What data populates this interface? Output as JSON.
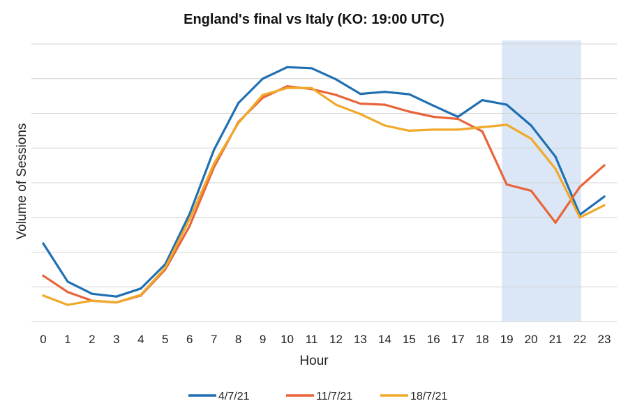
{
  "chart_data": {
    "type": "line",
    "title": "England's final vs Italy (KO: 19:00 UTC)",
    "xlabel": "Hour",
    "ylabel": "Volume of Sessions",
    "x": [
      0,
      1,
      2,
      3,
      4,
      5,
      6,
      7,
      8,
      9,
      10,
      11,
      12,
      13,
      14,
      15,
      16,
      17,
      18,
      19,
      20,
      21,
      22,
      23
    ],
    "ylim": [
      0,
      8
    ],
    "grid": true,
    "y_tick_labels_shown": false,
    "legend_position": "bottom",
    "highlight_x_range": [
      19,
      22
    ],
    "highlight_color": "#dbe7f6",
    "series": [
      {
        "name": "4/7/21",
        "color": "#1F6FB2",
        "values": [
          2.25,
          1.15,
          0.8,
          0.72,
          0.95,
          1.65,
          3.1,
          4.95,
          6.3,
          7.0,
          7.33,
          7.3,
          6.98,
          6.56,
          6.62,
          6.55,
          6.22,
          5.9,
          6.38,
          6.25,
          5.65,
          4.75,
          3.08,
          3.6
        ]
      },
      {
        "name": "11/7/21",
        "color": "#E8643A",
        "values": [
          1.32,
          0.85,
          0.6,
          0.55,
          0.75,
          1.5,
          2.75,
          4.45,
          5.75,
          6.45,
          6.78,
          6.7,
          6.53,
          6.28,
          6.25,
          6.05,
          5.9,
          5.84,
          5.48,
          3.95,
          3.77,
          2.85,
          3.88,
          4.5
        ]
      },
      {
        "name": "18/7/21",
        "color": "#F0A92A",
        "values": [
          0.75,
          0.48,
          0.6,
          0.55,
          0.77,
          1.55,
          2.95,
          4.55,
          5.72,
          6.53,
          6.73,
          6.73,
          6.25,
          5.98,
          5.65,
          5.5,
          5.53,
          5.53,
          5.6,
          5.67,
          5.27,
          4.4,
          3.0,
          3.35
        ]
      }
    ]
  }
}
